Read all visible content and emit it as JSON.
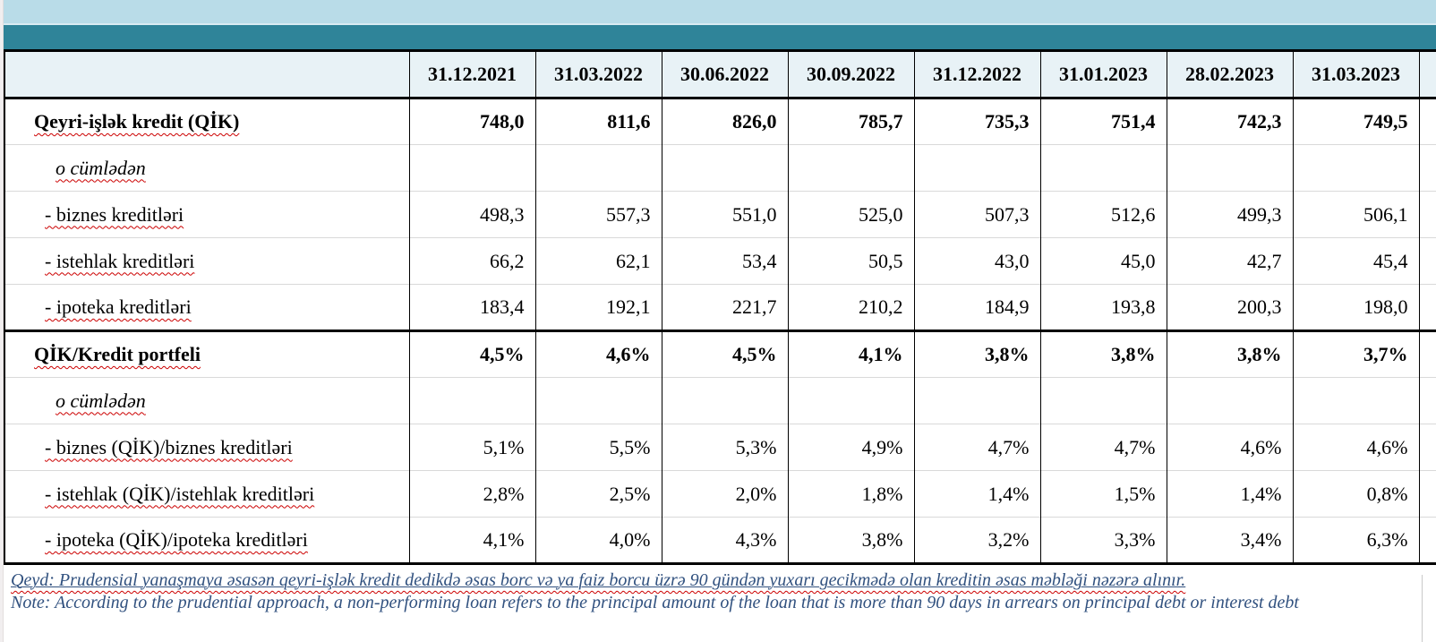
{
  "banner": {
    "light_band_color": "#b9dce8",
    "teal_band_color": "#2f8499"
  },
  "table": {
    "columns": [
      "31.12.2021",
      "31.03.2022",
      "30.06.2022",
      "30.09.2022",
      "31.12.2022",
      "31.01.2023",
      "28.02.2023",
      "31.03.2023"
    ],
    "rows": [
      {
        "label": "Qeyri-işlək kredit (QİK)",
        "style": "bold",
        "values": [
          "748,0",
          "811,6",
          "826,0",
          "785,7",
          "735,3",
          "751,4",
          "742,3",
          "749,5"
        ]
      },
      {
        "label": "o cümlədən",
        "style": "italic",
        "values": [
          "",
          "",
          "",
          "",
          "",
          "",
          "",
          ""
        ]
      },
      {
        "label": "- biznes kreditləri",
        "style": "sub",
        "values": [
          "498,3",
          "557,3",
          "551,0",
          "525,0",
          "507,3",
          "512,6",
          "499,3",
          "506,1"
        ]
      },
      {
        "label": "- istehlak kreditləri",
        "style": "sub",
        "values": [
          "66,2",
          "62,1",
          "53,4",
          "50,5",
          "43,0",
          "45,0",
          "42,7",
          "45,4"
        ]
      },
      {
        "label": "- ipoteka kreditləri",
        "style": "sub",
        "values": [
          "183,4",
          "192,1",
          "221,7",
          "210,2",
          "184,9",
          "193,8",
          "200,3",
          "198,0"
        ]
      },
      {
        "label": "QİK/Kredit portfeli",
        "style": "bold",
        "values": [
          "4,5%",
          "4,6%",
          "4,5%",
          "4,1%",
          "3,8%",
          "3,8%",
          "3,8%",
          "3,7%"
        ]
      },
      {
        "label": "o cümlədən",
        "style": "italic",
        "values": [
          "",
          "",
          "",
          "",
          "",
          "",
          "",
          ""
        ]
      },
      {
        "label": "- biznes (QİK)/biznes kreditləri",
        "style": "sub",
        "values": [
          "5,1%",
          "5,5%",
          "5,3%",
          "4,9%",
          "4,7%",
          "4,7%",
          "4,6%",
          "4,6%"
        ]
      },
      {
        "label": "- istehlak (QİK)/istehlak kreditləri",
        "style": "sub",
        "values": [
          "2,8%",
          "2,5%",
          "2,0%",
          "1,8%",
          "1,4%",
          "1,5%",
          "1,4%",
          "0,8%"
        ]
      },
      {
        "label": "- ipoteka (QİK)/ipoteka kreditləri",
        "style": "sub",
        "values": [
          "4,1%",
          "4,0%",
          "4,3%",
          "3,8%",
          "3,2%",
          "3,3%",
          "3,4%",
          "6,3%"
        ]
      }
    ]
  },
  "notes": {
    "az": "Qeyd: Prudensial yanaşmaya əsasən qeyri-işlək kredit dedikdə əsas borc və ya faiz borcu üzrə 90 gündən yuxarı gecikmədə olan kreditin əsas məbləği nəzərə alınır.",
    "en": "Note: According to the prudential approach, a non-performing loan refers to the principal amount of the loan that is more than 90 days in arrears on principal debt or interest debt"
  },
  "colors": {
    "header_row_bg": "#e8f2f6",
    "note_text": "#31517f",
    "spellcheck_underline": "#cc0000",
    "grid_separator": "#d9d9d9",
    "border_black": "#000000"
  }
}
